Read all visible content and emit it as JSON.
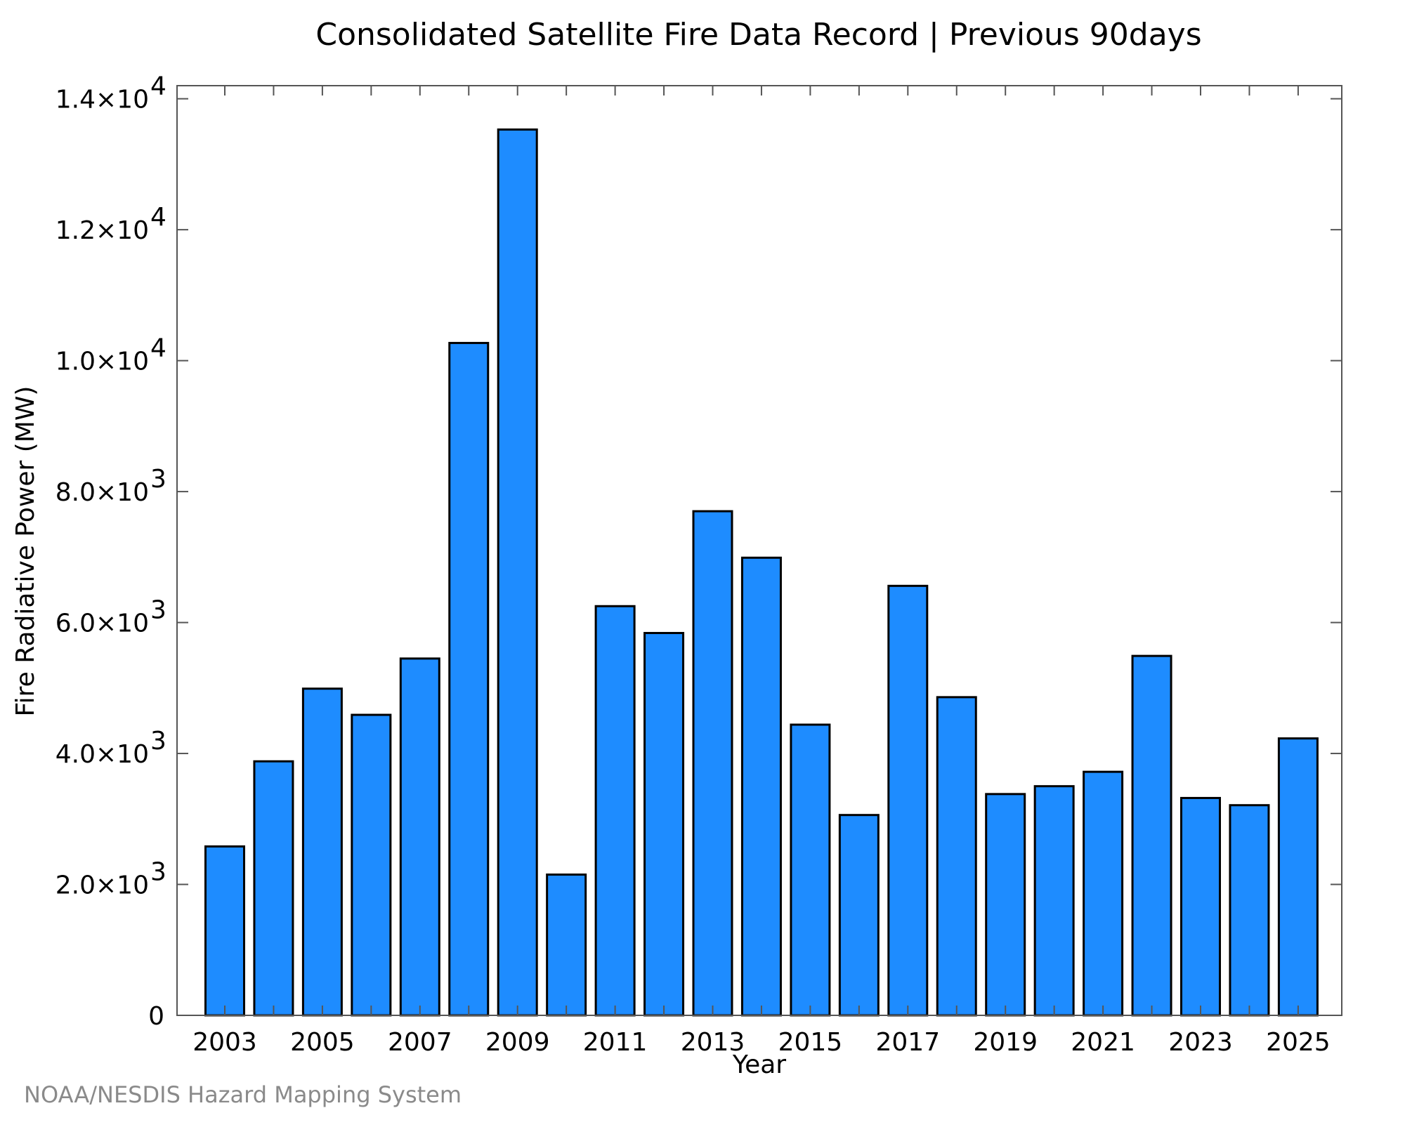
{
  "chart_data": {
    "type": "bar",
    "title": "Consolidated Satellite Fire Data Record | Previous 90days",
    "xlabel": "Year",
    "ylabel": "Fire Radiative Power (MW)",
    "credit": "NOAA/NESDIS Hazard Mapping System",
    "categories": [
      "2003",
      "2004",
      "2005",
      "2006",
      "2007",
      "2008",
      "2009",
      "2010",
      "2011",
      "2012",
      "2013",
      "2014",
      "2015",
      "2016",
      "2017",
      "2018",
      "2019",
      "2020",
      "2021",
      "2022",
      "2023",
      "2024",
      "2025"
    ],
    "values": [
      2580,
      3880,
      4990,
      4590,
      5450,
      10270,
      13530,
      2150,
      6250,
      5840,
      7700,
      6990,
      4440,
      3060,
      6560,
      4860,
      3380,
      3500,
      3720,
      5490,
      3320,
      3210,
      4230
    ],
    "x_tick_labels": [
      "2003",
      "2005",
      "2007",
      "2009",
      "2011",
      "2013",
      "2015",
      "2017",
      "2019",
      "2021",
      "2023",
      "2025"
    ],
    "y_ticks": [
      {
        "value": 0,
        "mantissa": "0",
        "exponent": ""
      },
      {
        "value": 2000,
        "mantissa": "2.0×10",
        "exponent": "3"
      },
      {
        "value": 4000,
        "mantissa": "4.0×10",
        "exponent": "3"
      },
      {
        "value": 6000,
        "mantissa": "6.0×10",
        "exponent": "3"
      },
      {
        "value": 8000,
        "mantissa": "8.0×10",
        "exponent": "3"
      },
      {
        "value": 10000,
        "mantissa": "1.0×10",
        "exponent": "4"
      },
      {
        "value": 12000,
        "mantissa": "1.2×10",
        "exponent": "4"
      },
      {
        "value": 14000,
        "mantissa": "1.4×10",
        "exponent": "4"
      }
    ],
    "ylim": [
      0,
      14200
    ],
    "grid": false,
    "bar_color": "#1e8cff",
    "bar_edge_color": "#000000",
    "credit_color": "#8a8a8a"
  }
}
